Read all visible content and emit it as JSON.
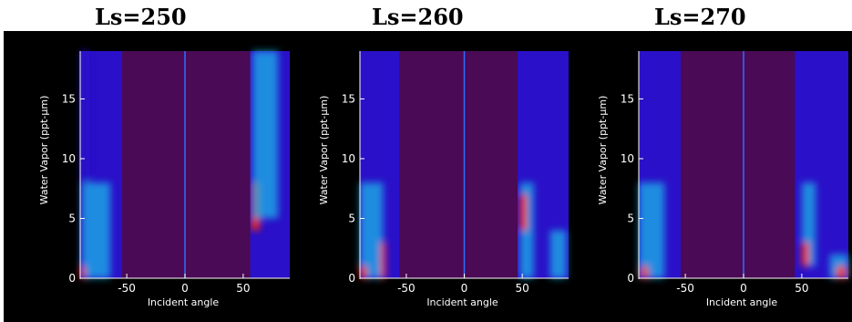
{
  "chart_data": [
    {
      "type": "heatmap",
      "title": "Ls=250",
      "xlabel": "Incident angle",
      "ylabel": "Water Vapor (ppt-μm)",
      "xlim": [
        -90,
        90
      ],
      "ylim": [
        0,
        19
      ],
      "xticks": [
        -50,
        0,
        50
      ],
      "yticks": [
        0,
        5,
        10,
        15
      ],
      "no_data_ranges": [
        [
          -54,
          56
        ]
      ],
      "zero_line_x": 0,
      "features": [
        {
          "x": [
            -90,
            -82
          ],
          "y": [
            0,
            19
          ],
          "level": "low"
        },
        {
          "x": [
            -88,
            -64
          ],
          "y": [
            0,
            8
          ],
          "level": "mid"
        },
        {
          "x": [
            -90,
            -86
          ],
          "y": [
            0,
            1
          ],
          "level": "high"
        },
        {
          "x": [
            57,
            64
          ],
          "y": [
            4,
            8
          ],
          "level": "high"
        },
        {
          "x": [
            58,
            80
          ],
          "y": [
            5,
            19
          ],
          "level": "mid"
        }
      ]
    },
    {
      "type": "heatmap",
      "title": "Ls=260",
      "xlabel": "Incident angle",
      "ylabel": "Water Vapor (ppt-μm)",
      "xlim": [
        -90,
        90
      ],
      "ylim": [
        0,
        19
      ],
      "xticks": [
        -50,
        0,
        50
      ],
      "yticks": [
        0,
        5,
        10,
        15
      ],
      "no_data_ranges": [
        [
          -56,
          46
        ]
      ],
      "zero_line_x": 0,
      "features": [
        {
          "x": [
            -90,
            -70
          ],
          "y": [
            0,
            8
          ],
          "level": "mid"
        },
        {
          "x": [
            -90,
            -84
          ],
          "y": [
            0,
            1
          ],
          "level": "high"
        },
        {
          "x": [
            -72,
            -68
          ],
          "y": [
            0,
            3
          ],
          "level": "high"
        },
        {
          "x": [
            48,
            60
          ],
          "y": [
            0,
            8
          ],
          "level": "mid"
        },
        {
          "x": [
            48,
            54
          ],
          "y": [
            4,
            7
          ],
          "level": "high"
        },
        {
          "x": [
            74,
            88
          ],
          "y": [
            0,
            4
          ],
          "level": "mid"
        }
      ]
    },
    {
      "type": "heatmap",
      "title": "Ls=270",
      "xlabel": "Incident angle",
      "ylabel": "Water Vapor (ppt-μm)",
      "xlim": [
        -90,
        90
      ],
      "ylim": [
        0,
        19
      ],
      "xticks": [
        -50,
        0,
        50
      ],
      "yticks": [
        0,
        5,
        10,
        15
      ],
      "no_data_ranges": [
        [
          -54,
          44
        ]
      ],
      "zero_line_x": 0,
      "features": [
        {
          "x": [
            -90,
            -68
          ],
          "y": [
            0,
            8
          ],
          "level": "mid"
        },
        {
          "x": [
            -88,
            -82
          ],
          "y": [
            0,
            1
          ],
          "level": "high"
        },
        {
          "x": [
            50,
            62
          ],
          "y": [
            1,
            8
          ],
          "level": "mid"
        },
        {
          "x": [
            50,
            56
          ],
          "y": [
            1,
            3
          ],
          "level": "high"
        },
        {
          "x": [
            74,
            90
          ],
          "y": [
            0,
            2
          ],
          "level": "mid"
        },
        {
          "x": [
            80,
            88
          ],
          "y": [
            0,
            1
          ],
          "level": "high"
        }
      ]
    }
  ],
  "colors": {
    "background": "#000000",
    "no_data": "#4a0a55",
    "field_low": "#2a10c8",
    "field_mid": "#19b7e8",
    "field_high": "#ff2a00",
    "zero_line": "#2f6cff",
    "axis": "#ffffff"
  }
}
